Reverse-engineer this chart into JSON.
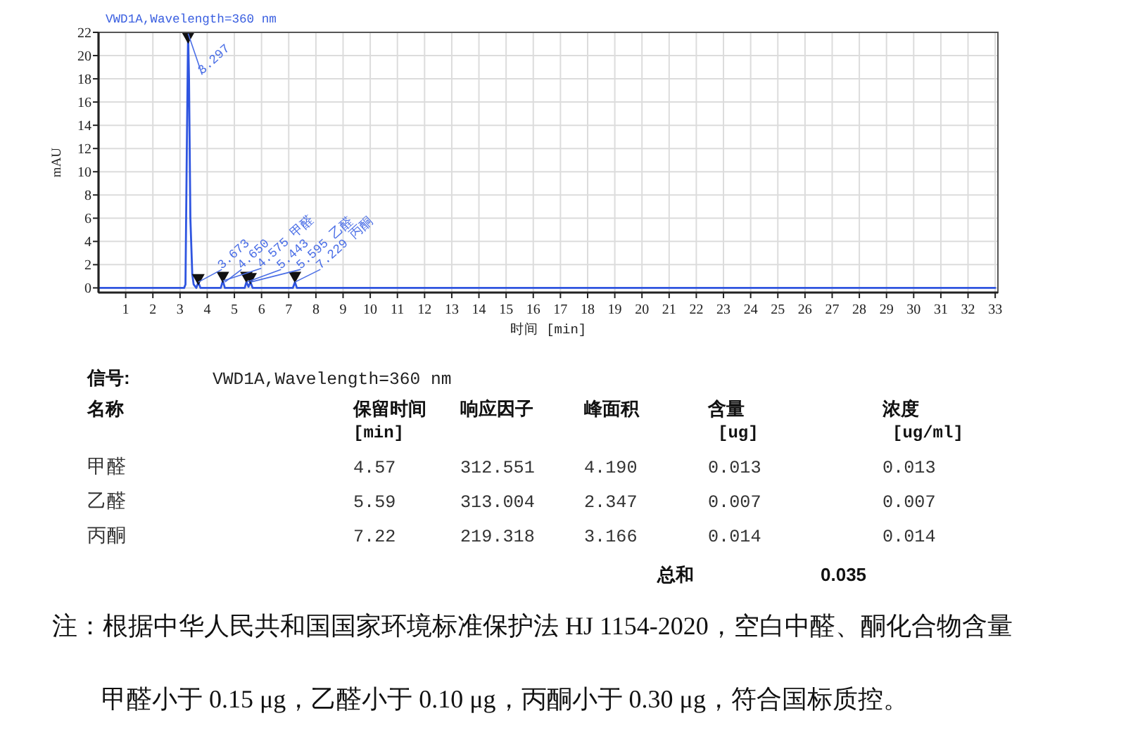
{
  "chart_data": [
    {
      "type": "line",
      "title": "VWD1A,Wavelength=360 nm",
      "xlabel": "时间 [min]",
      "ylabel": "mAU",
      "xlim": [
        0,
        33.1
      ],
      "xticks": [
        1,
        2,
        3,
        4,
        5,
        6,
        7,
        8,
        9,
        10,
        11,
        12,
        13,
        14,
        15,
        16,
        17,
        18,
        19,
        20,
        21,
        22,
        23,
        24,
        25,
        26,
        27,
        28,
        29,
        30,
        31,
        32,
        33
      ],
      "ylim": [
        -0.4,
        22
      ],
      "yticks": [
        0,
        2,
        4,
        6,
        8,
        10,
        12,
        14,
        16,
        18,
        20,
        22
      ],
      "grid": true,
      "series": [
        {
          "type": "line",
          "color": "#2f55e0",
          "x": [
            0,
            3.15,
            3.2,
            3.25,
            3.297,
            3.33,
            3.38,
            3.45,
            3.5,
            3.6,
            3.673,
            3.75,
            4.5,
            4.575,
            4.65,
            5.38,
            5.443,
            5.52,
            5.595,
            5.67,
            7.15,
            7.229,
            7.3,
            33
          ],
          "values": [
            0,
            0,
            0.3,
            12,
            21.9,
            18,
            6,
            1.2,
            0.3,
            0,
            0.5,
            0,
            0,
            0.6,
            0,
            0,
            0.5,
            0.1,
            0.5,
            0,
            0,
            0.5,
            0,
            0
          ]
        },
        {
          "type": "scatter",
          "marker": "triangle",
          "color": "#111111",
          "x": [
            3.297,
            3.673,
            4.575,
            5.443,
            5.595,
            7.229
          ],
          "values": [
            21.5,
            0.7,
            0.9,
            0.9,
            0.8,
            0.9
          ]
        }
      ],
      "annotations": [
        {
          "text": "3.297",
          "x": 3.297,
          "y": 21.9
        },
        {
          "text": "3.673",
          "x": 3.673,
          "y": 0.5
        },
        {
          "text": "4.650",
          "x": 4.65,
          "y": 0.5
        },
        {
          "text": "4.575 甲醛",
          "x": 4.575,
          "y": 0.6
        },
        {
          "text": "5.443",
          "x": 5.443,
          "y": 0.5
        },
        {
          "text": "5.595 乙醛",
          "x": 5.595,
          "y": 0.5
        },
        {
          "text": "7.229 丙酮",
          "x": 7.229,
          "y": 0.5
        }
      ]
    },
    {
      "type": "other",
      "title": "信号:",
      "subtitle": "VWD1A,Wavelength=360 nm",
      "xlabel": "名称",
      "categories": [
        "甲醛",
        "乙醛",
        "丙酮"
      ],
      "series": [
        {
          "name": "保留时间 [min]",
          "values": [
            4.57,
            5.59,
            7.22
          ],
          "value_labels": [
            "4.57",
            "5.59",
            "7.22"
          ]
        },
        {
          "name": "响应因子",
          "values": [
            312.551,
            313.004,
            219.318
          ],
          "value_labels": [
            "312.551",
            "313.004",
            "219.318"
          ]
        },
        {
          "name": "峰面积",
          "values": [
            4.19,
            2.347,
            3.166
          ],
          "value_labels": [
            "4.190",
            "2.347",
            "3.166"
          ]
        },
        {
          "name": "含量 [ug]",
          "values": [
            0.013,
            0.007,
            0.014
          ],
          "value_labels": [
            "0.013",
            "0.007",
            "0.014"
          ]
        },
        {
          "name": "浓度 [ug/ml]",
          "values": [
            0.013,
            0.007,
            0.014
          ],
          "value_labels": [
            "0.013",
            "0.007",
            "0.014"
          ]
        }
      ],
      "annotations": [
        "总和",
        "0.035",
        "注：根据中华人民共和国国家环境标准保护法 HJ 1154-2020，空白中醛、酮化合物含量",
        "甲醛小于 0.15 μg，乙醛小于 0.10 μg，丙酮小于 0.30 μg，符合国标质控。"
      ]
    }
  ]
}
